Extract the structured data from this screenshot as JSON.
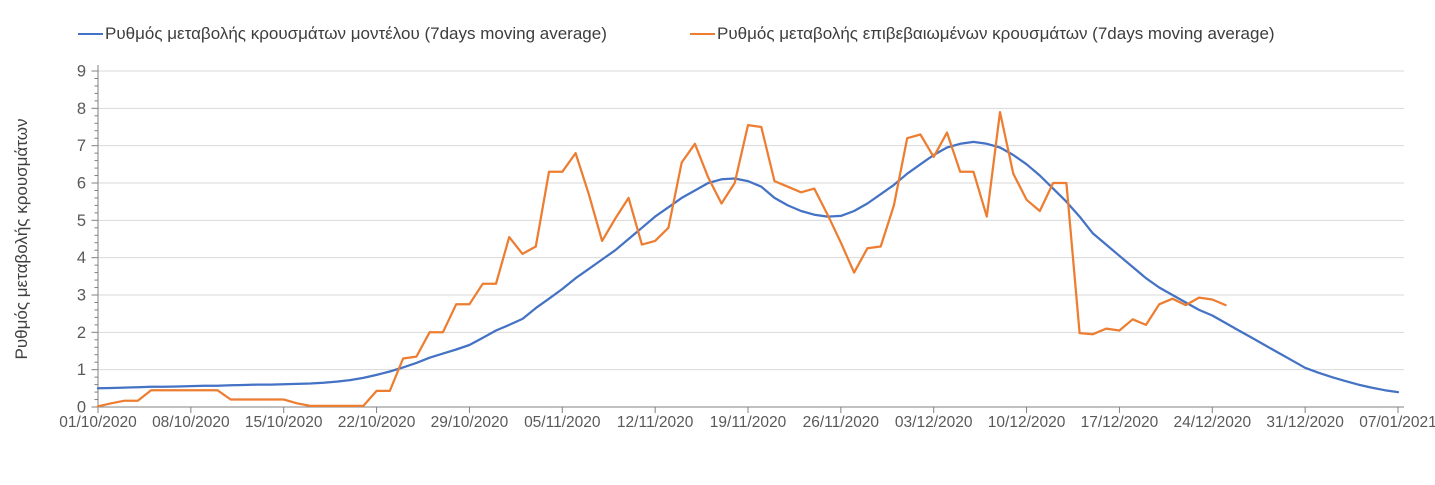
{
  "chart_data": {
    "type": "line",
    "title": "",
    "xlabel": "",
    "ylabel": "Ρυθμός μεταβολής κρουσμάτων",
    "ylim": [
      0,
      9
    ],
    "ytick_step": 1,
    "yticks": [
      0,
      1,
      2,
      3,
      4,
      5,
      6,
      7,
      8,
      9
    ],
    "x_range": {
      "start": "01/10/2020",
      "end": "07/01/2021"
    },
    "xtick_labels": [
      "01/10/2020",
      "08/10/2020",
      "15/10/2020",
      "22/10/2020",
      "29/10/2020",
      "05/11/2020",
      "12/11/2020",
      "19/11/2020",
      "26/11/2020",
      "03/12/2020",
      "10/12/2020",
      "17/12/2020",
      "24/12/2020",
      "31/12/2020",
      "07/01/2021"
    ],
    "grid": true,
    "legend_position": "top",
    "colors": {
      "grid": "#d9d9d9",
      "axis": "#808080",
      "tick_label": "#595959",
      "legend_text": "#3d3d3d",
      "background": "#ffffff"
    },
    "series": [
      {
        "name": "Ρυθμός μεταβολής κρουσμάτων μοντέλου (7days moving average)",
        "color": "#4472c4",
        "dates": [
          "01/10/2020",
          "02/10/2020",
          "03/10/2020",
          "04/10/2020",
          "05/10/2020",
          "06/10/2020",
          "07/10/2020",
          "08/10/2020",
          "09/10/2020",
          "10/10/2020",
          "11/10/2020",
          "12/10/2020",
          "13/10/2020",
          "14/10/2020",
          "15/10/2020",
          "16/10/2020",
          "17/10/2020",
          "18/10/2020",
          "19/10/2020",
          "20/10/2020",
          "21/10/2020",
          "22/10/2020",
          "23/10/2020",
          "24/10/2020",
          "25/10/2020",
          "26/10/2020",
          "27/10/2020",
          "28/10/2020",
          "29/10/2020",
          "30/10/2020",
          "31/10/2020",
          "01/11/2020",
          "02/11/2020",
          "03/11/2020",
          "04/11/2020",
          "05/11/2020",
          "06/11/2020",
          "07/11/2020",
          "08/11/2020",
          "09/11/2020",
          "10/11/2020",
          "11/11/2020",
          "12/11/2020",
          "13/11/2020",
          "14/11/2020",
          "15/11/2020",
          "16/11/2020",
          "17/11/2020",
          "18/11/2020",
          "19/11/2020",
          "20/11/2020",
          "21/11/2020",
          "22/11/2020",
          "23/11/2020",
          "24/11/2020",
          "25/11/2020",
          "26/11/2020",
          "27/11/2020",
          "28/11/2020",
          "29/11/2020",
          "30/11/2020",
          "01/12/2020",
          "02/12/2020",
          "03/12/2020",
          "04/12/2020",
          "05/12/2020",
          "06/12/2020",
          "07/12/2020",
          "08/12/2020",
          "09/12/2020",
          "10/12/2020",
          "11/12/2020",
          "12/12/2020",
          "13/12/2020",
          "14/12/2020",
          "15/12/2020",
          "16/12/2020",
          "17/12/2020",
          "18/12/2020",
          "19/12/2020",
          "20/12/2020",
          "21/12/2020",
          "22/12/2020",
          "23/12/2020",
          "24/12/2020",
          "25/12/2020",
          "26/12/2020",
          "27/12/2020",
          "28/12/2020",
          "29/12/2020",
          "30/12/2020",
          "31/12/2020",
          "01/01/2021",
          "02/01/2021",
          "03/01/2021",
          "04/01/2021",
          "05/01/2021",
          "06/01/2021",
          "07/01/2021"
        ],
        "values": [
          0.5,
          0.51,
          0.52,
          0.53,
          0.54,
          0.54,
          0.55,
          0.56,
          0.57,
          0.57,
          0.58,
          0.59,
          0.6,
          0.6,
          0.61,
          0.62,
          0.63,
          0.65,
          0.68,
          0.72,
          0.78,
          0.86,
          0.95,
          1.06,
          1.18,
          1.32,
          1.43,
          1.54,
          1.66,
          1.85,
          2.05,
          2.2,
          2.36,
          2.65,
          2.9,
          3.16,
          3.45,
          3.7,
          3.95,
          4.2,
          4.5,
          4.8,
          5.1,
          5.35,
          5.6,
          5.8,
          6.0,
          6.1,
          6.12,
          6.05,
          5.9,
          5.6,
          5.4,
          5.25,
          5.15,
          5.1,
          5.12,
          5.25,
          5.45,
          5.7,
          5.95,
          6.25,
          6.5,
          6.75,
          6.95,
          7.05,
          7.1,
          7.05,
          6.95,
          6.75,
          6.5,
          6.2,
          5.85,
          5.5,
          5.1,
          4.65,
          4.35,
          4.05,
          3.75,
          3.45,
          3.2,
          3.0,
          2.8,
          2.6,
          2.45,
          2.25,
          2.05,
          1.85,
          1.65,
          1.45,
          1.25,
          1.05,
          0.92,
          0.8,
          0.7,
          0.6,
          0.52,
          0.45,
          0.4
        ]
      },
      {
        "name": "Ρυθμός μεταβολής επιβεβαιωμένων κρουσμάτων (7days moving average)",
        "color": "#ed7d31",
        "dates": [
          "01/10/2020",
          "02/10/2020",
          "03/10/2020",
          "04/10/2020",
          "05/10/2020",
          "06/10/2020",
          "07/10/2020",
          "08/10/2020",
          "09/10/2020",
          "10/10/2020",
          "11/10/2020",
          "12/10/2020",
          "13/10/2020",
          "14/10/2020",
          "15/10/2020",
          "16/10/2020",
          "17/10/2020",
          "18/10/2020",
          "19/10/2020",
          "20/10/2020",
          "21/10/2020",
          "22/10/2020",
          "23/10/2020",
          "24/10/2020",
          "25/10/2020",
          "26/10/2020",
          "27/10/2020",
          "28/10/2020",
          "29/10/2020",
          "30/10/2020",
          "31/10/2020",
          "01/11/2020",
          "02/11/2020",
          "03/11/2020",
          "04/11/2020",
          "05/11/2020",
          "06/11/2020",
          "07/11/2020",
          "08/11/2020",
          "09/11/2020",
          "10/11/2020",
          "11/11/2020",
          "12/11/2020",
          "13/11/2020",
          "14/11/2020",
          "15/11/2020",
          "16/11/2020",
          "17/11/2020",
          "18/11/2020",
          "19/11/2020",
          "20/11/2020",
          "21/11/2020",
          "22/11/2020",
          "23/11/2020",
          "24/11/2020",
          "25/11/2020",
          "26/11/2020",
          "27/11/2020",
          "28/11/2020",
          "29/11/2020",
          "30/11/2020",
          "01/12/2020",
          "02/12/2020",
          "03/12/2020",
          "04/12/2020",
          "05/12/2020",
          "06/12/2020",
          "07/12/2020",
          "08/12/2020",
          "09/12/2020",
          "10/12/2020",
          "11/12/2020",
          "12/12/2020",
          "13/12/2020",
          "14/12/2020",
          "15/12/2020",
          "16/12/2020",
          "17/12/2020",
          "18/12/2020",
          "19/12/2020",
          "20/12/2020",
          "21/12/2020",
          "22/12/2020",
          "23/12/2020",
          "24/12/2020",
          "25/12/2020"
        ],
        "values": [
          0.02,
          0.1,
          0.17,
          0.17,
          0.45,
          0.45,
          0.45,
          0.45,
          0.45,
          0.45,
          0.2,
          0.2,
          0.2,
          0.2,
          0.2,
          0.1,
          0.03,
          0.03,
          0.03,
          0.03,
          0.03,
          0.43,
          0.43,
          1.3,
          1.35,
          2.0,
          2.0,
          2.75,
          2.75,
          3.3,
          3.3,
          4.55,
          4.1,
          4.3,
          6.3,
          6.3,
          6.8,
          5.7,
          4.45,
          5.05,
          5.6,
          4.35,
          4.45,
          4.8,
          6.55,
          7.05,
          6.15,
          5.45,
          6.0,
          7.55,
          7.5,
          6.05,
          5.9,
          5.75,
          5.85,
          5.15,
          4.4,
          3.6,
          4.25,
          4.3,
          5.4,
          7.2,
          7.3,
          6.7,
          7.35,
          6.3,
          6.3,
          5.1,
          7.9,
          6.25,
          5.55,
          5.25,
          6.0,
          6.0,
          1.98,
          1.95,
          2.1,
          2.05,
          2.35,
          2.2,
          2.75,
          2.9,
          2.73,
          2.93,
          2.88,
          2.73
        ]
      }
    ]
  }
}
